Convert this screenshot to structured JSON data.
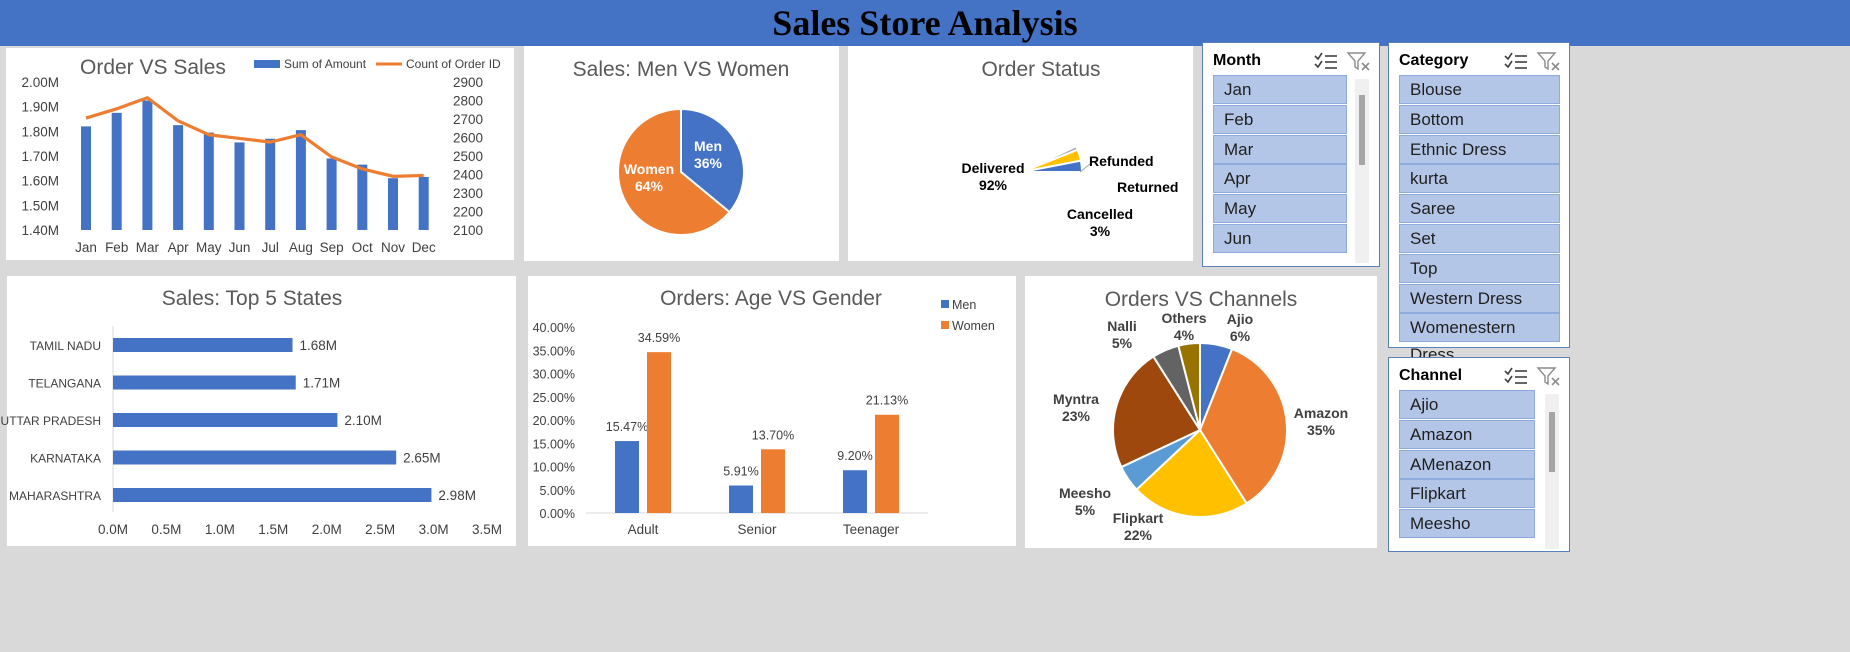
{
  "dashboard": {
    "title": "Sales Store Analysis"
  },
  "charts": {
    "order_vs_sales": {
      "title": "Order VS Sales",
      "legend": [
        "Sum of Amount",
        "Count of Order ID"
      ],
      "months": [
        "Jan",
        "Feb",
        "Mar",
        "Apr",
        "May",
        "Jun",
        "Jul",
        "Aug",
        "Sep",
        "Oct",
        "Nov",
        "Dec"
      ],
      "left_ticks": [
        "2.00M",
        "1.90M",
        "1.80M",
        "1.70M",
        "1.60M",
        "1.50M",
        "1.40M"
      ],
      "right_ticks": [
        "2900",
        "2800",
        "2700",
        "2600",
        "2500",
        "2400",
        "2300",
        "2200",
        "2100"
      ]
    },
    "men_vs_women": {
      "title": "Sales: Men VS Women",
      "labels": [
        [
          "Men",
          "36%"
        ],
        [
          "Women",
          "64%"
        ]
      ]
    },
    "order_status": {
      "title": "Order Status",
      "labels": {
        "delivered": [
          "Delivered",
          "92%"
        ],
        "refunded": "Refunded",
        "returned": "Returned",
        "cancelled": [
          "Cancelled",
          "3%"
        ]
      }
    },
    "top_states": {
      "title": "Sales: Top 5 States",
      "x_ticks": [
        "0.0M",
        "0.5M",
        "1.0M",
        "1.5M",
        "2.0M",
        "2.5M",
        "3.0M",
        "3.5M"
      ]
    },
    "age_gender": {
      "title": "Orders: Age VS Gender",
      "legend": [
        "Men",
        "Women"
      ],
      "y_ticks": [
        "40.00%",
        "35.00%",
        "30.00%",
        "25.00%",
        "20.00%",
        "15.00%",
        "10.00%",
        "5.00%",
        "0.00%"
      ]
    },
    "channels": {
      "title": "Orders VS Channels"
    }
  },
  "chart_data": [
    {
      "type": "bar",
      "title": "Order VS Sales",
      "categories": [
        "Jan",
        "Feb",
        "Mar",
        "Apr",
        "May",
        "Jun",
        "Jul",
        "Aug",
        "Sep",
        "Oct",
        "Nov",
        "Dec"
      ],
      "series": [
        {
          "name": "Sum of Amount",
          "type": "bar",
          "axis": "left",
          "values": [
            1.82,
            1.875,
            1.925,
            1.825,
            1.795,
            1.755,
            1.77,
            1.805,
            1.69,
            1.665,
            1.61,
            1.615
          ]
        },
        {
          "name": "Count of Order ID",
          "type": "line",
          "axis": "right",
          "values": [
            2705,
            2755,
            2815,
            2690,
            2615,
            2595,
            2575,
            2615,
            2495,
            2430,
            2390,
            2395
          ]
        }
      ],
      "ylim_left": [
        1.4,
        2.0
      ],
      "ylim_right": [
        2100,
        2900
      ]
    },
    {
      "type": "pie",
      "title": "Sales: Men VS Women",
      "categories": [
        "Men",
        "Women"
      ],
      "values": [
        36,
        64
      ],
      "colors": [
        "#4472c4",
        "#ed7d31"
      ]
    },
    {
      "type": "pie",
      "title": "Order Status",
      "categories": [
        "Delivered",
        "Refunded",
        "Returned",
        "Cancelled"
      ],
      "values": [
        92,
        1,
        3,
        3
      ],
      "colors": [
        "#ed7d31",
        "#a5a5a5",
        "#ffc000",
        "#4472c4"
      ]
    },
    {
      "type": "bar",
      "title": "Sales: Top 5 States",
      "orientation": "horizontal",
      "categories": [
        "TAMIL NADU",
        "TELANGANA",
        "UTTAR PRADESH",
        "KARNATAKA",
        "MAHARASHTRA"
      ],
      "values": [
        1.68,
        1.71,
        2.1,
        2.65,
        2.98
      ],
      "labels": [
        "1.68M",
        "1.71M",
        "2.10M",
        "2.65M",
        "2.98M"
      ],
      "xlim": [
        0,
        3.5
      ]
    },
    {
      "type": "bar",
      "title": "Orders: Age VS Gender",
      "categories": [
        "Adult",
        "Senior",
        "Teenager"
      ],
      "series": [
        {
          "name": "Men",
          "values": [
            15.47,
            5.91,
            9.2
          ],
          "labels": [
            "15.47%",
            "5.91%",
            "9.20%"
          ],
          "color": "#4472c4"
        },
        {
          "name": "Women",
          "values": [
            34.59,
            13.7,
            21.13
          ],
          "labels": [
            "34.59%",
            "13.70%",
            "21.13%"
          ],
          "color": "#ed7d31"
        }
      ],
      "ylim": [
        0,
        40
      ]
    },
    {
      "type": "pie",
      "title": "Orders VS Channels",
      "categories": [
        "Ajio",
        "Amazon",
        "Flipkart",
        "Meesho",
        "Myntra",
        "Nalli",
        "Others"
      ],
      "values": [
        6,
        35,
        22,
        5,
        23,
        5,
        4
      ],
      "labels": [
        "6%",
        "35%",
        "22%",
        "5%",
        "23%",
        "5%",
        "4%"
      ],
      "colors": [
        "#4472c4",
        "#ed7d31",
        "#ffc000",
        "#5b9bd5",
        "#9e480e",
        "#636363",
        "#997300"
      ]
    }
  ],
  "slicers": {
    "month": {
      "title": "Month",
      "items": [
        "Jan",
        "Feb",
        "Mar",
        "Apr",
        "May",
        "Jun"
      ]
    },
    "category": {
      "title": "Category",
      "items": [
        "Blouse",
        "Bottom",
        "Ethnic Dress",
        "kurta",
        "Saree",
        "Set",
        "Top",
        "Western Dress",
        "Womenestern Dress"
      ]
    },
    "channel": {
      "title": "Channel",
      "items": [
        "Ajio",
        "Amazon",
        "AMenazon",
        "Flipkart",
        "Meesho"
      ]
    }
  },
  "icons": {
    "multiselect": "multi-select-icon",
    "clear_filter": "clear-filter-icon"
  },
  "colors": {
    "banner": "#4472c4",
    "blue": "#4472c4",
    "orange": "#ed7d31",
    "slicer_item": "#b4c6e7"
  }
}
